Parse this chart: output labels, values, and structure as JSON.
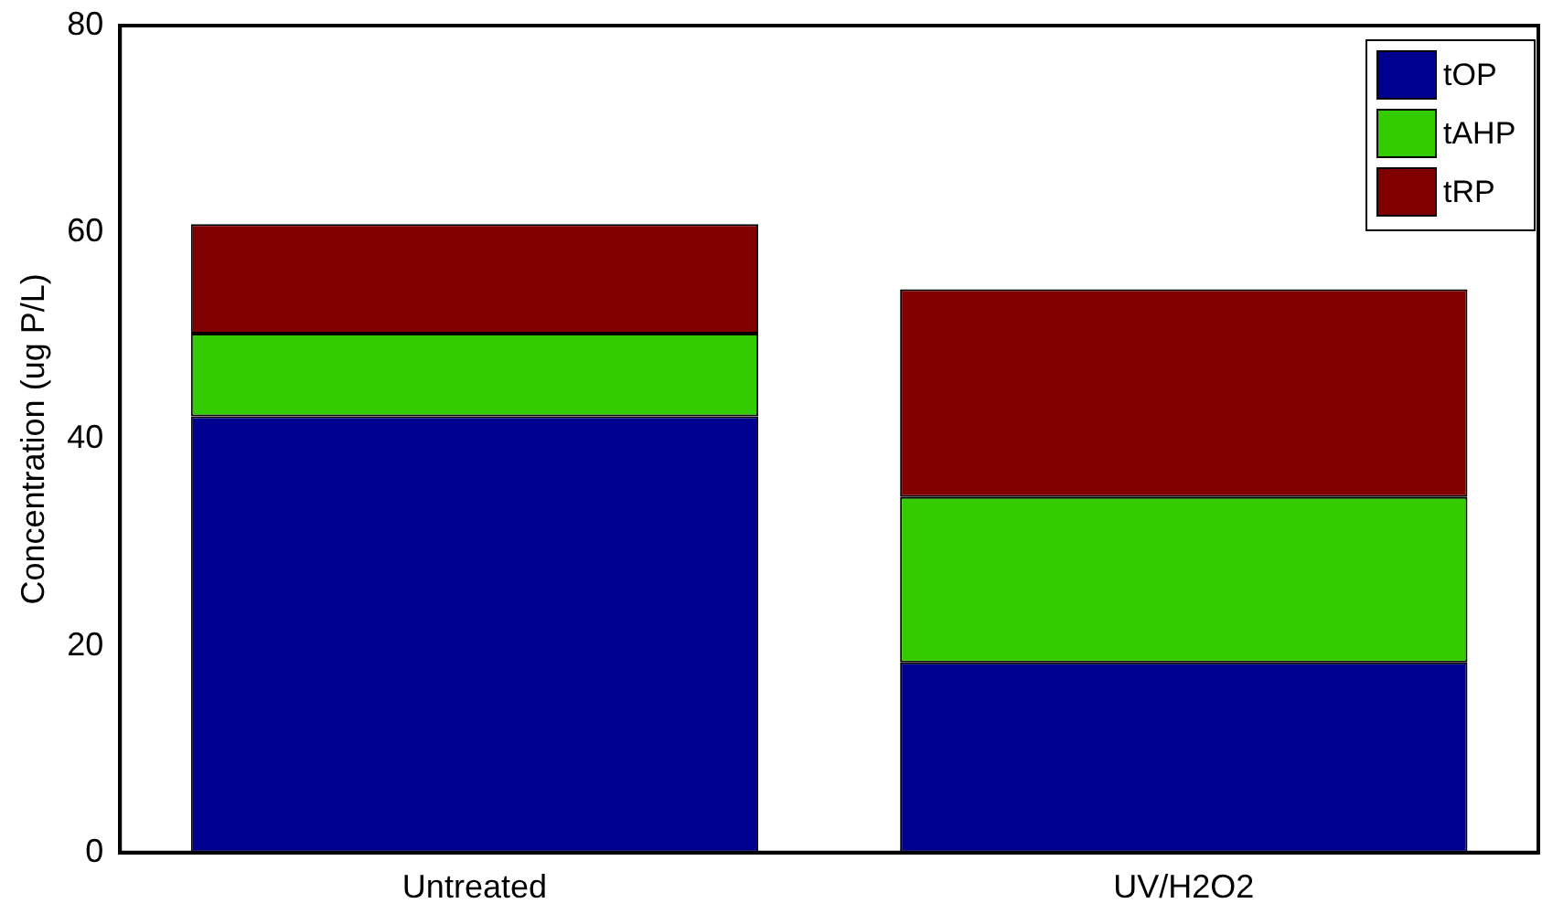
{
  "chart_data": {
    "type": "bar",
    "stacked": true,
    "ylabel": "Concentration (ug P/L)",
    "categories": [
      "Untreated",
      "UV/H2O2"
    ],
    "series": [
      {
        "name": "tOP",
        "color": "#000090",
        "values": [
          42.2,
          18.4
        ]
      },
      {
        "name": "tAHP",
        "color": "#33cc00",
        "values": [
          8.0,
          16.0
        ]
      },
      {
        "name": "tRP",
        "color": "#800000",
        "values": [
          10.6,
          20.1
        ]
      }
    ],
    "ylim": [
      0,
      80
    ],
    "yticks": [
      0,
      20,
      40,
      60,
      80
    ],
    "grid": false,
    "legend": "top right"
  }
}
